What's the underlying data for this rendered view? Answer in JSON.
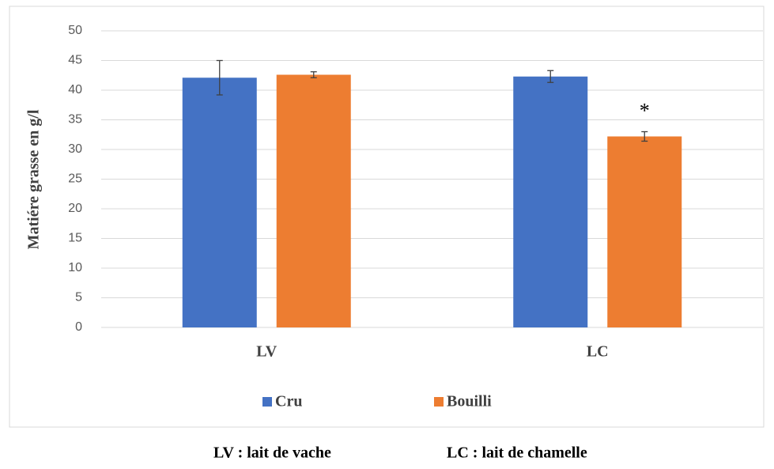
{
  "chart_data": {
    "type": "bar",
    "y_label": "Matiére grasse en g/l",
    "categories": [
      "LV",
      "LC"
    ],
    "series": [
      {
        "name": "Cru",
        "color": "#4472c4",
        "values": [
          42.1,
          42.3
        ],
        "errors": [
          2.9,
          1.0
        ]
      },
      {
        "name": "Bouilli",
        "color": "#ed7d31",
        "values": [
          42.6,
          32.2
        ],
        "errors": [
          0.5,
          0.8
        ]
      }
    ],
    "annotations": [
      {
        "text": "*",
        "series": 1,
        "category": 1
      }
    ],
    "ylim": [
      0,
      50
    ],
    "yticks": [
      0,
      5,
      10,
      15,
      20,
      25,
      30,
      35,
      40,
      45,
      50
    ],
    "grid": true,
    "legend": "bottom",
    "footnotes": [
      "LV : lait de vache",
      "LC : lait de chamelle"
    ]
  }
}
